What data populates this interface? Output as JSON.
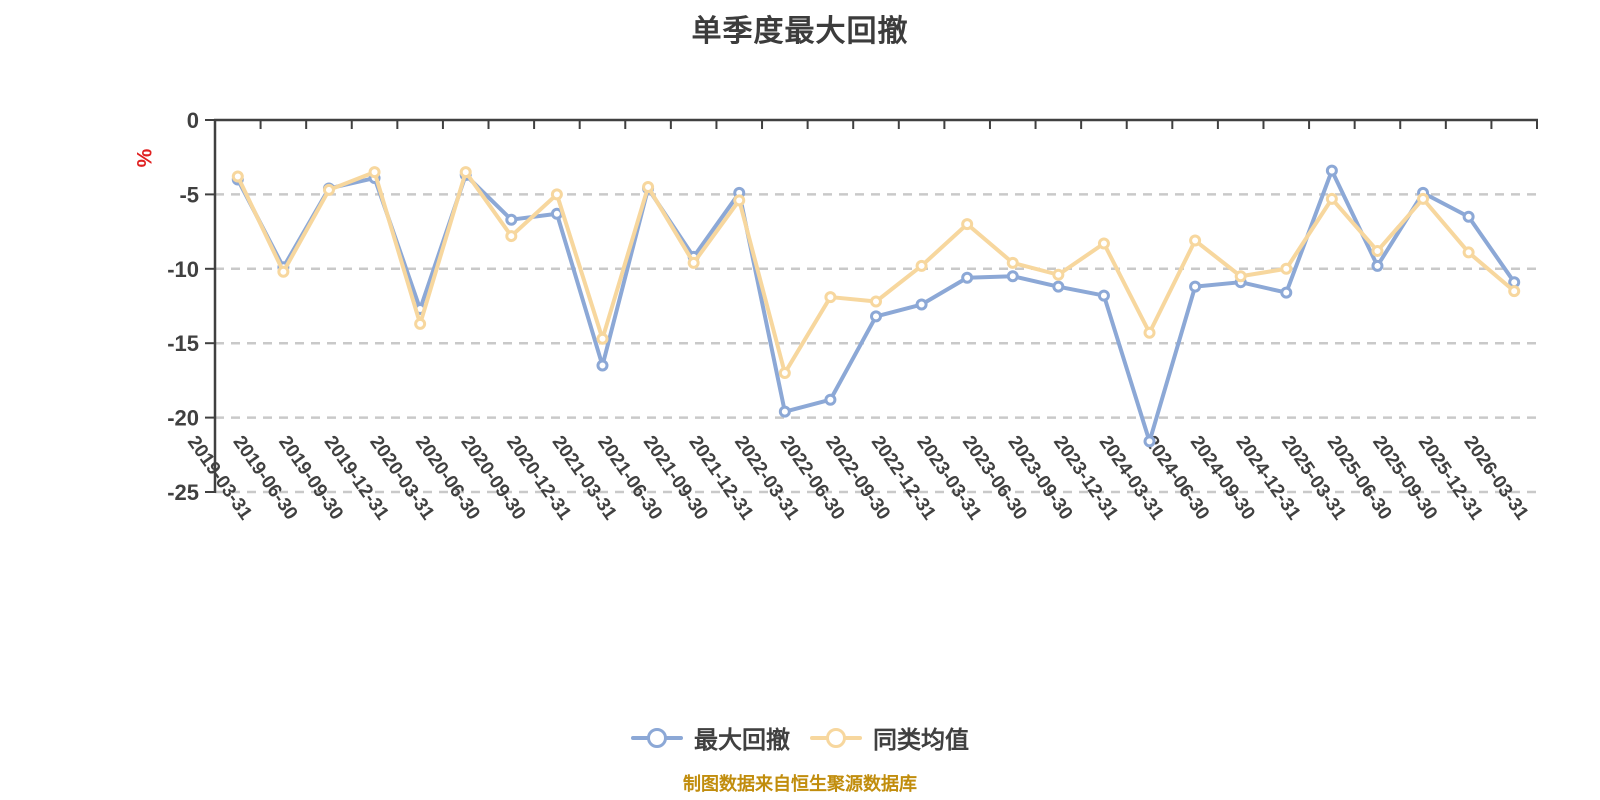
{
  "title": "单季度最大回撤",
  "y_axis_unit": "%",
  "caption": "制图数据来自恒生聚源数据库",
  "colors": {
    "background": "#ffffff",
    "title_text": "#3c3c3c",
    "axis_and_labels": "#404040",
    "gridline": "#c9c9c9",
    "unit_label_red": "#e02020",
    "caption_orange": "#c18d0d",
    "series_drawdown_blue": "#8ca8d6",
    "series_average_yellow": "#f7d79e",
    "marker_fill": "#ffffff"
  },
  "chart_data": {
    "type": "line",
    "title": "单季度最大回撤",
    "ylabel": "%",
    "ylim": [
      -25,
      0
    ],
    "yticks": [
      0,
      -5,
      -10,
      -15,
      -20,
      -25
    ],
    "grid": "horizontal dashed",
    "legend_position": "bottom",
    "x_label_rotation_deg": 55,
    "categories": [
      "2019-03-31",
      "2019-06-30",
      "2019-09-30",
      "2019-12-31",
      "2020-03-31",
      "2020-06-30",
      "2020-09-30",
      "2020-12-31",
      "2021-03-31",
      "2021-06-30",
      "2021-09-30",
      "2021-12-31",
      "2022-03-31",
      "2022-06-30",
      "2022-09-30",
      "2022-12-31",
      "2023-03-31",
      "2023-06-30",
      "2023-09-30",
      "2023-12-31",
      "2024-03-31",
      "2024-06-30",
      "2024-09-30",
      "2024-12-31",
      "2025-03-31",
      "2025-06-30",
      "2025-09-30",
      "2025-12-31",
      "2026-03-31"
    ],
    "series": [
      {
        "name": "最大回撤",
        "color": "#8ca8d6",
        "values": [
          -4.0,
          -9.9,
          -4.6,
          -3.9,
          -12.7,
          -3.7,
          -6.7,
          -6.3,
          -16.5,
          -4.6,
          -9.2,
          -4.9,
          -19.6,
          -18.8,
          -13.2,
          -12.4,
          -10.6,
          -10.5,
          -11.2,
          -11.8,
          -21.6,
          -11.2,
          -10.9,
          -11.6,
          -3.4,
          -9.8,
          -4.9,
          -6.5,
          -10.9
        ]
      },
      {
        "name": "同类均值",
        "color": "#f7d79e",
        "values": [
          -3.8,
          -10.2,
          -4.7,
          -3.5,
          -13.7,
          -3.5,
          -7.8,
          -5.0,
          -14.7,
          -4.5,
          -9.6,
          -5.4,
          -17.0,
          -11.9,
          -12.2,
          -9.8,
          -7.0,
          -9.6,
          -10.4,
          -8.3,
          -14.3,
          -8.1,
          -10.5,
          -10.0,
          -5.3,
          -8.8,
          -5.3,
          -8.9,
          -11.5
        ]
      }
    ]
  }
}
